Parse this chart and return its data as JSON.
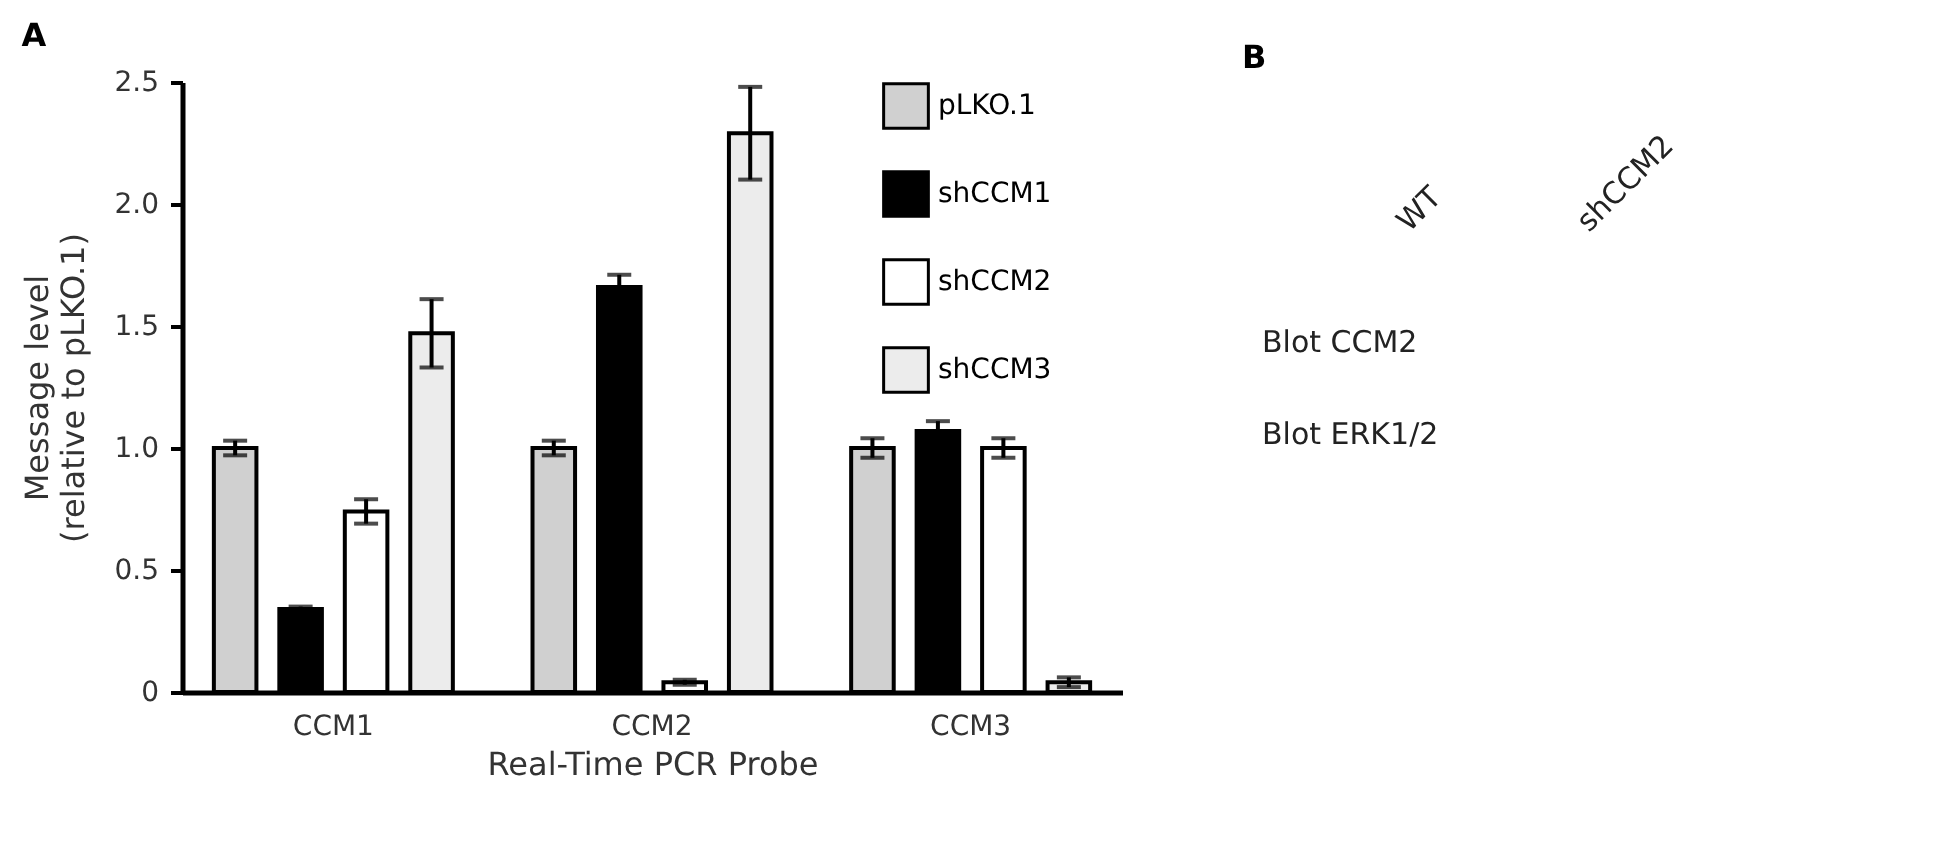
{
  "chart_data": [
    {
      "type": "bar",
      "title": "A",
      "xlabel": "Real-Time PCR Probe",
      "ylabel": "Message level\n(relative to pLKO.1)",
      "categories": [
        "CCM1",
        "CCM2",
        "CCM3"
      ],
      "series": [
        {
          "name": "pLKO.1",
          "color": "#d0d0d0",
          "values": [
            1.0,
            1.0,
            1.0
          ],
          "errors": [
            0.03,
            0.03,
            0.04
          ]
        },
        {
          "name": "shCCM1",
          "color": "#000000",
          "values": [
            0.34,
            1.66,
            1.07
          ],
          "errors": [
            0.01,
            0.05,
            0.04
          ]
        },
        {
          "name": "shCCM2",
          "color": "#ffffff",
          "values": [
            0.74,
            0.04,
            1.0
          ],
          "errors": [
            0.05,
            0.01,
            0.04
          ]
        },
        {
          "name": "shCCM3",
          "color": "#ececec",
          "values": [
            1.47,
            2.29,
            0.04
          ],
          "errors": [
            0.14,
            0.19,
            0.02
          ]
        }
      ],
      "ylim": [
        0,
        2.5
      ],
      "yticks": [
        0,
        0.5,
        {
          "value": 1,
          "label": "1.0"
        },
        1.5,
        {
          "value": 2,
          "label": "2.0"
        },
        2.5
      ],
      "legend": "top right"
    },
    {
      "type": "other",
      "title": "B",
      "annotations": [
        "WT",
        "shCCM2",
        "Blot CCM2",
        "Blot ERK1/2"
      ]
    }
  ]
}
